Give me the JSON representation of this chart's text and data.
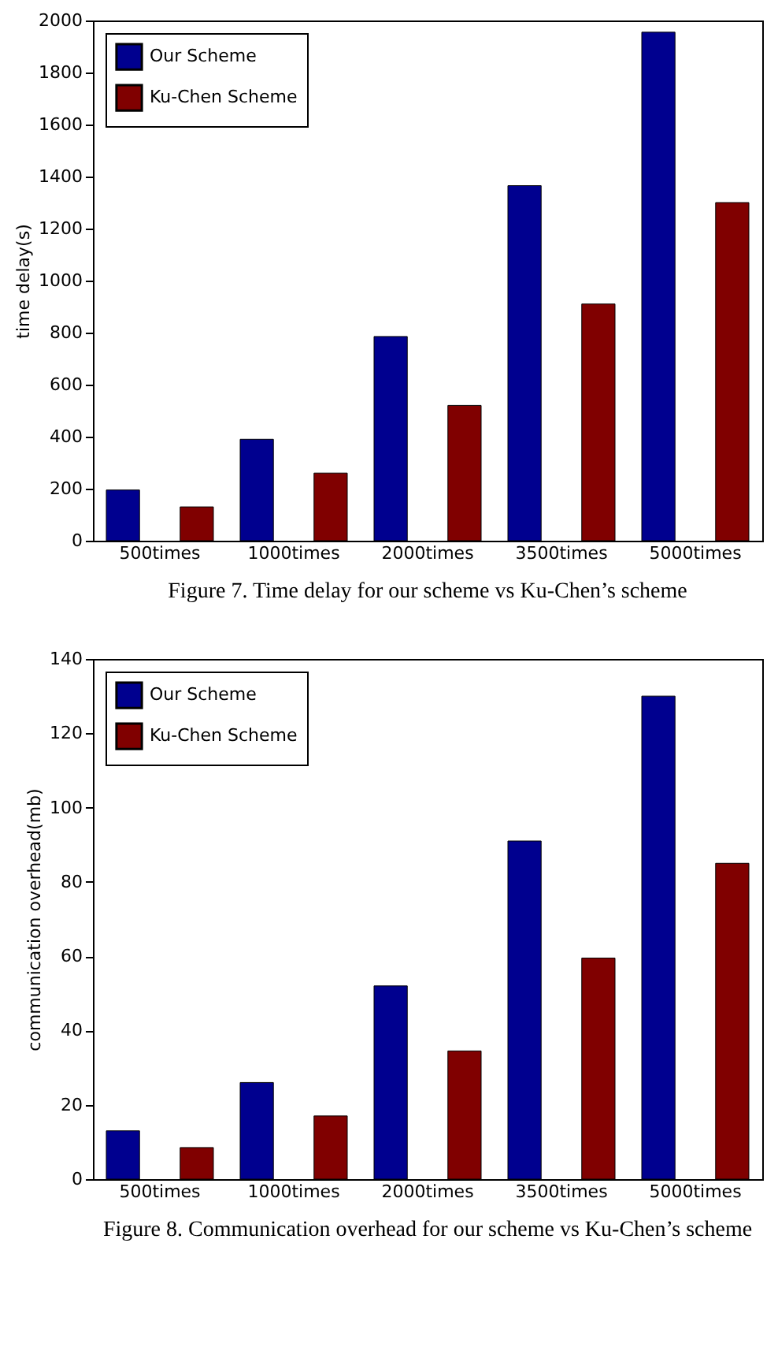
{
  "chart_data": [
    {
      "type": "bar",
      "categories": [
        "500times",
        "1000times",
        "2000times",
        "3500times",
        "5000times"
      ],
      "ylabel": "time delay(s)",
      "ylim": [
        0,
        2000
      ],
      "yticks": [
        0,
        200,
        400,
        600,
        800,
        1000,
        1200,
        1400,
        1600,
        1800,
        2000
      ],
      "grid": false,
      "legend": "top left",
      "series": [
        {
          "name": "Our Scheme",
          "color": "#00008f",
          "values": [
            195,
            390,
            785,
            1365,
            1955
          ]
        },
        {
          "name": "Ku-Chen Scheme",
          "color": "#800000",
          "values": [
            130,
            260,
            520,
            910,
            1300
          ]
        }
      ],
      "annotations": [
        "Figure 7. Time delay for our scheme vs Ku-Chen’s scheme"
      ]
    },
    {
      "type": "bar",
      "categories": [
        "500times",
        "1000times",
        "2000times",
        "3500times",
        "5000times"
      ],
      "ylabel": "communication overhead(mb)",
      "ylim": [
        0,
        140
      ],
      "yticks": [
        0,
        20,
        40,
        60,
        80,
        100,
        120,
        140
      ],
      "grid": false,
      "legend": "top left",
      "series": [
        {
          "name": "Our Scheme",
          "color": "#00008f",
          "values": [
            13,
            26,
            52,
            91,
            130
          ]
        },
        {
          "name": "Ku-Chen Scheme",
          "color": "#800000",
          "values": [
            8.5,
            17,
            34.5,
            59.5,
            85
          ]
        }
      ],
      "annotations": [
        "Figure 8. Communication overhead for our scheme vs Ku-Chen’s scheme"
      ]
    }
  ]
}
